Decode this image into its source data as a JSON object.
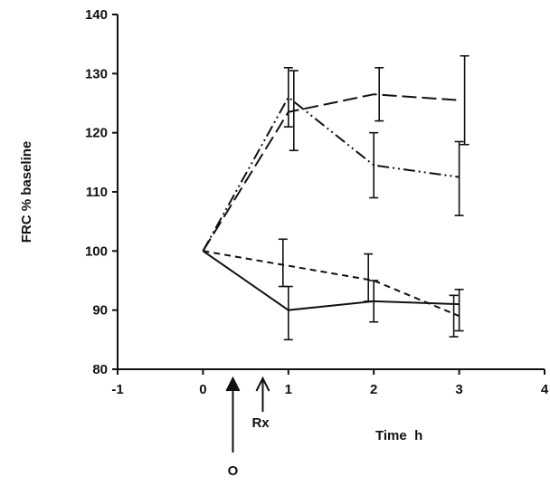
{
  "chart_data": {
    "type": "line",
    "title": "",
    "xlabel": "Time  h",
    "ylabel": "FRC % baseline",
    "xlim": [
      -1,
      4
    ],
    "ylim": [
      80,
      140
    ],
    "xticks": [
      -1,
      0,
      1,
      2,
      3,
      4
    ],
    "xtick_labels": [
      "-1",
      "0",
      "1",
      "2",
      "3",
      "4"
    ],
    "yticks": [
      80,
      90,
      100,
      110,
      120,
      130,
      140
    ],
    "ytick_labels": [
      "80",
      "90",
      "100",
      "110",
      "120",
      "130",
      "140"
    ],
    "grid": false,
    "series": [
      {
        "line_style": "long-dash",
        "x": [
          0,
          1,
          2,
          3
        ],
        "y": [
          100,
          123.5,
          126.5,
          125.5
        ],
        "err_low": [
          0,
          6.5,
          4.5,
          7.5
        ],
        "err_high": [
          0,
          7.0,
          4.5,
          7.5
        ]
      },
      {
        "line_style": "dash-dot-dot",
        "x": [
          0,
          1,
          2,
          3
        ],
        "y": [
          100,
          126,
          114.5,
          112.5
        ],
        "err_low": [
          0,
          5.0,
          5.5,
          6.5
        ],
        "err_high": [
          0,
          5.0,
          5.5,
          6.0
        ]
      },
      {
        "line_style": "short-dash",
        "x": [
          0,
          1,
          2,
          3
        ],
        "y": [
          100,
          97.5,
          95,
          89
        ],
        "err_low": [
          0,
          3.5,
          3.5,
          3.5
        ],
        "err_high": [
          0,
          4.5,
          4.5,
          3.5
        ]
      },
      {
        "line_style": "solid",
        "x": [
          0,
          1,
          2,
          3
        ],
        "y": [
          100,
          90,
          91.5,
          91
        ],
        "err_low": [
          0,
          5.0,
          3.5,
          4.5
        ],
        "err_high": [
          0,
          4.0,
          3.5,
          2.5
        ]
      }
    ],
    "annotations": [
      {
        "text": "O",
        "x": 0.35
      },
      {
        "text": "Rx",
        "x": 0.7
      }
    ]
  }
}
